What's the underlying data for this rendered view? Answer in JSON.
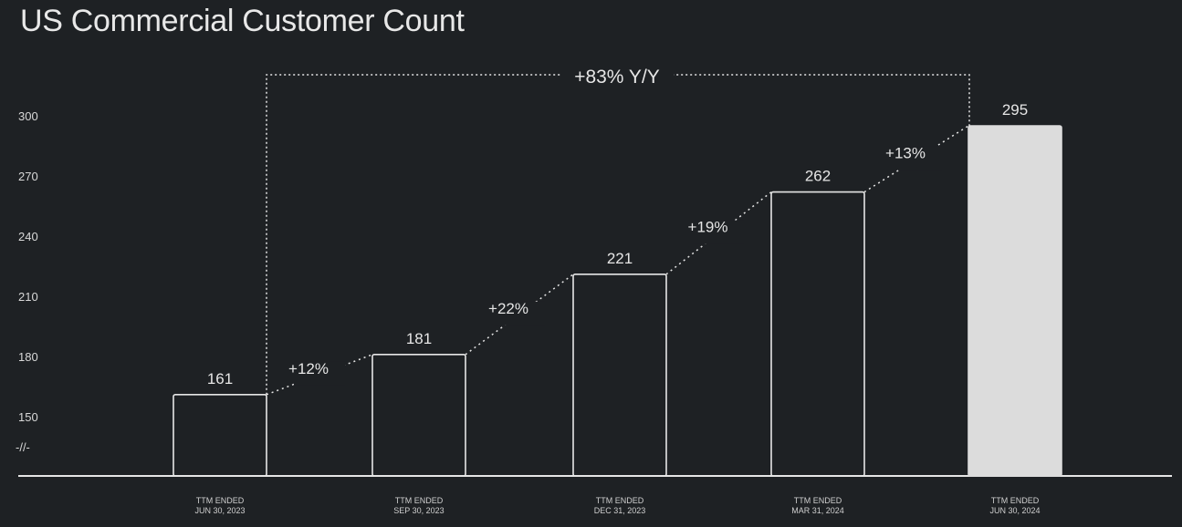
{
  "chart_data": {
    "type": "bar",
    "title": "US Commercial Customer Count",
    "categories": [
      [
        "TTM ENDED",
        "JUN 30, 2023"
      ],
      [
        "TTM ENDED",
        "SEP 30, 2023"
      ],
      [
        "TTM ENDED",
        "DEC 31, 2023"
      ],
      [
        "TTM ENDED",
        "MAR 31, 2024"
      ],
      [
        "TTM ENDED",
        "JUN 30, 2024"
      ]
    ],
    "values": [
      161,
      181,
      221,
      262,
      295
    ],
    "value_labels": [
      "161",
      "181",
      "221",
      "262",
      "295"
    ],
    "growth_labels": [
      "+12%",
      "+22%",
      "+19%",
      "+13%"
    ],
    "yoy_label": "+83% Y/Y",
    "yticks": [
      150,
      180,
      210,
      240,
      270,
      300
    ],
    "ytick_labels": [
      "150",
      "180",
      "210",
      "240",
      "270",
      "300"
    ],
    "axis_break_label": "-//-",
    "ylim": [
      150,
      300
    ],
    "xlabel": "",
    "ylabel": "",
    "grid": false,
    "colors": {
      "background": "#1e2124",
      "bar_outline": "#e6e6e6",
      "highlight_bar": "#dcdcdc",
      "text": "#e6e6e6"
    }
  }
}
